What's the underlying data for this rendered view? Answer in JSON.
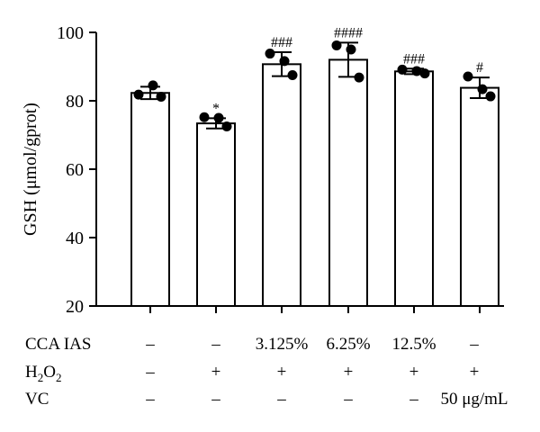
{
  "chart_data": {
    "type": "bar",
    "ylabel": "GSH (μmol/gprot)",
    "ylim": [
      20,
      100
    ],
    "yticks": [
      20,
      40,
      60,
      80,
      100
    ],
    "grid": false,
    "bars": [
      {
        "value": 82.3,
        "sd": 1.8,
        "points": [
          81.8,
          84.5,
          81.2
        ],
        "sig": ""
      },
      {
        "value": 73.4,
        "sd": 1.5,
        "points": [
          75.2,
          75.0,
          72.5
        ],
        "sig": "*"
      },
      {
        "value": 90.7,
        "sd": 3.5,
        "points": [
          93.8,
          91.6,
          87.5
        ],
        "sig": "###"
      },
      {
        "value": 92.0,
        "sd": 5.0,
        "points": [
          96.2,
          95.0,
          86.8
        ],
        "sig": "####"
      },
      {
        "value": 88.6,
        "sd": 0.8,
        "points": [
          89.1,
          88.7,
          88.0
        ],
        "sig": "###"
      },
      {
        "value": 83.8,
        "sd": 3.0,
        "points": [
          87.1,
          83.4,
          81.3
        ],
        "sig": "#"
      }
    ],
    "table": {
      "rows": [
        {
          "label": "CCA IAS",
          "values": [
            "–",
            "–",
            "3.125%",
            "6.25%",
            "12.5%",
            "–"
          ]
        },
        {
          "label_main": "H",
          "label_sub1": "2",
          "label_mid": "O",
          "label_sub2": "2",
          "values": [
            "–",
            "+",
            "+",
            "+",
            "+",
            "+"
          ]
        },
        {
          "label": "VC",
          "values": [
            "–",
            "–",
            "–",
            "–",
            "–",
            "50 μg/mL"
          ]
        }
      ]
    }
  }
}
